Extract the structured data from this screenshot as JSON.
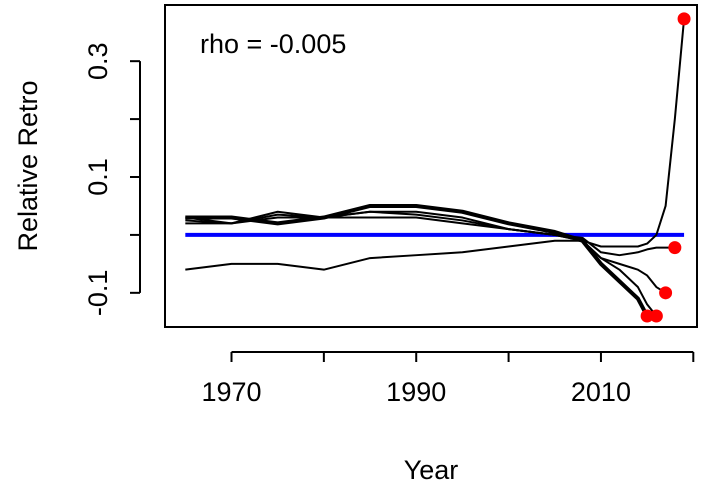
{
  "chart_data": {
    "type": "line",
    "annotation": "rho = -0.005",
    "x_label": "Year",
    "y_label": "Relative Retro",
    "x": [
      1965,
      1970,
      1975,
      1980,
      1985,
      1990,
      1995,
      2000,
      2005,
      2008,
      2010,
      2012,
      2014,
      2015,
      2016,
      2017,
      2018,
      2019
    ],
    "series": [
      {
        "color": "#0000ff",
        "width": 4,
        "end_marker": false,
        "values": [
          0,
          0,
          0,
          0,
          0,
          0,
          0,
          0,
          0,
          0,
          0,
          0,
          0,
          0,
          0,
          0,
          0,
          0
        ]
      },
      {
        "color": "#000000",
        "width": 2,
        "end_marker": true,
        "values": [
          0.03,
          0.02,
          0.04,
          0.03,
          0.04,
          0.035,
          0.025,
          0.01,
          0.0,
          -0.01,
          -0.02,
          -0.02,
          -0.02,
          -0.015,
          0.0,
          0.05,
          0.2,
          0.373
        ]
      },
      {
        "color": "#000000",
        "width": 2,
        "end_marker": true,
        "values": [
          0.02,
          0.02,
          0.03,
          0.03,
          0.03,
          0.03,
          0.02,
          0.01,
          0.0,
          -0.005,
          -0.03,
          -0.035,
          -0.03,
          -0.025,
          -0.022,
          -0.022,
          -0.022,
          null
        ]
      },
      {
        "color": "#000000",
        "width": 2,
        "end_marker": true,
        "values": [
          -0.06,
          -0.05,
          -0.05,
          -0.06,
          -0.04,
          -0.035,
          -0.03,
          -0.02,
          -0.01,
          -0.01,
          -0.04,
          -0.05,
          -0.06,
          -0.07,
          -0.09,
          -0.1,
          null,
          null
        ]
      },
      {
        "color": "#000000",
        "width": 2,
        "end_marker": true,
        "values": [
          0.025,
          0.02,
          0.035,
          0.03,
          0.04,
          0.04,
          0.03,
          0.01,
          0.0,
          -0.01,
          -0.04,
          -0.06,
          -0.09,
          -0.12,
          -0.14,
          null,
          null,
          null
        ]
      },
      {
        "color": "#000000",
        "width": 4,
        "end_marker": true,
        "values": [
          0.03,
          0.03,
          0.02,
          0.03,
          0.05,
          0.05,
          0.04,
          0.02,
          0.005,
          -0.01,
          -0.05,
          -0.08,
          -0.11,
          -0.14,
          null,
          null,
          null,
          null
        ]
      }
    ],
    "end_marker_color": "#ff0000",
    "xlim": [
      1962.8,
      2020.4
    ],
    "ylim": [
      -0.159,
      0.397
    ],
    "xticks": [
      1970,
      1990,
      2010
    ],
    "xminorticks": [
      1980,
      2000,
      2020
    ],
    "yticks": [
      -0.1,
      0.1,
      0.3
    ],
    "yminorticks": [
      0,
      0.2
    ]
  }
}
